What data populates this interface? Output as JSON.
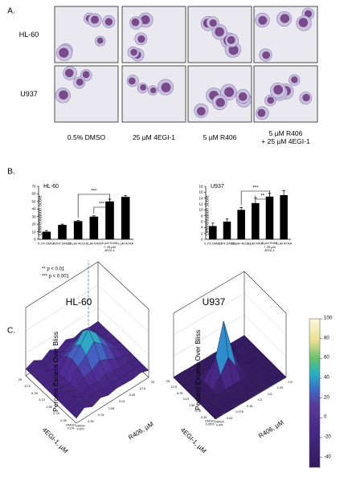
{
  "panel_a": {
    "label": "A.",
    "rows": [
      "HL-60",
      "U937"
    ],
    "columns": [
      "0.5% DMSO",
      "25 µM 4EGI-1",
      "5 µM R406",
      "5 µM R406\n+ 25 µM 4EGI-1"
    ]
  },
  "panel_b": {
    "label": "B.",
    "notes": [
      "** p < 0.01",
      "*** p < 0.001"
    ]
  },
  "chart_data": [
    {
      "type": "bar",
      "title": "HL-60",
      "y_label": "Differentiation Score",
      "categories": [
        "0.1% DMSO",
        "0.5% DMSO",
        "25 µM 4EGI-1",
        "5 µM R406",
        "5 µM R406\n+ 25 µM\n4EGI-1",
        "1 µM ATRA"
      ],
      "values": [
        10,
        19,
        24,
        30,
        50,
        56
      ],
      "errors": [
        1.5,
        1,
        1,
        1,
        3,
        2
      ],
      "color": "#000000",
      "ylim": [
        0,
        70
      ],
      "yticks": [
        0,
        10,
        20,
        30,
        40,
        50,
        60,
        70
      ],
      "annotations": [
        "***",
        "***"
      ]
    },
    {
      "type": "bar",
      "title": "U937",
      "y_label": "Differentiation Score",
      "categories": [
        "0.1% DMSO",
        "0.5% DMSO",
        "25 µM 4EGI-1",
        "5 µM R406",
        "5 µM R406\n+ 25 µM\n4EGI-1",
        "1 µM ATRA"
      ],
      "values": [
        4.5,
        6,
        10,
        12.3,
        14.5,
        15
      ],
      "errors": [
        1,
        1,
        0.8,
        1.8,
        1.2,
        1.5
      ],
      "color": "#000000",
      "ylim": [
        0,
        18
      ],
      "yticks": [
        0,
        2,
        4,
        6,
        8,
        10,
        12,
        14,
        16,
        18
      ],
      "annotations": [
        "***",
        "**"
      ]
    }
  ],
  "panel_c": {
    "label": "C.",
    "plots": [
      {
        "title": "HL-60",
        "z_label": "Percent Excess Over Bliss",
        "x_label": "4EGI-1, µM",
        "y_label": "R406, µM",
        "x_ticks": [
          "25",
          "12.5",
          "6.25",
          "3.13",
          "1.56",
          "0.78",
          "0.39",
          "DMSO\n0.1%"
        ],
        "y_ticks": [
          "DMSO\n0.5%",
          "0.39",
          "0.78",
          "1.56",
          "3.13",
          "6.25",
          "12.5",
          "25"
        ]
      },
      {
        "title": "U937",
        "z_label": "Percent Excess Over Bliss",
        "x_label": "4EGI-1, µM",
        "y_label": "R406, µM",
        "x_ticks": [
          "25",
          "12.5",
          "6.25",
          "3.13",
          "1.56",
          "0.78",
          "0.39",
          "DMSO\n0.05%"
        ],
        "y_ticks": [
          "DMSO\n0.4%",
          "0.04",
          "0.075",
          "0.15",
          "0.3",
          "0.6",
          "1.25",
          "2.5"
        ]
      }
    ],
    "colorbar": {
      "lim": [
        -50,
        100
      ],
      "ticks": [
        100,
        80,
        60,
        40,
        20,
        0,
        -20,
        -40
      ]
    }
  }
}
